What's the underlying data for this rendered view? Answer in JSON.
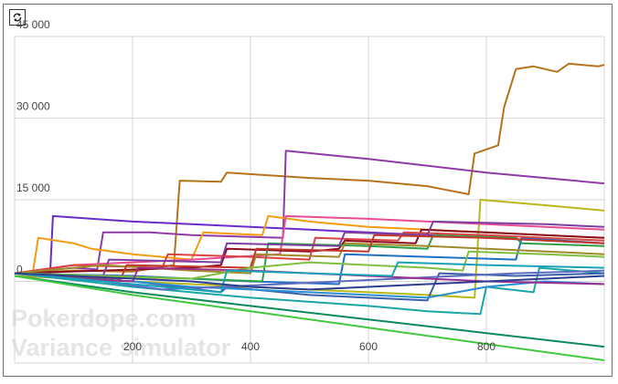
{
  "toolbar": {
    "refresh_icon": "refresh-icon"
  },
  "watermark": {
    "line1": "Pokerdope.com",
    "line2": "Variance simulator"
  },
  "chart_data": {
    "type": "line",
    "title": "",
    "xlabel": "",
    "ylabel": "",
    "xlim": [
      0,
      1000
    ],
    "ylim": [
      -15000,
      45000
    ],
    "grid": true,
    "x_ticks": [
      200,
      400,
      600,
      800
    ],
    "x_tick_labels": [
      "200",
      "400",
      "600",
      "800"
    ],
    "y_ticks": [
      0,
      15000,
      30000,
      45000
    ],
    "y_tick_labels": [
      "0",
      "15 000",
      "30 000",
      "45 000"
    ],
    "series": [
      {
        "color": "#b5741c",
        "x": [
          0,
          100,
          200,
          270,
          280,
          350,
          360,
          500,
          600,
          700,
          770,
          780,
          820,
          830,
          850,
          880,
          920,
          940,
          990,
          1000
        ],
        "y": [
          1500,
          2000,
          1800,
          3000,
          18500,
          18300,
          20000,
          19000,
          18500,
          17500,
          16000,
          23500,
          25000,
          32000,
          39000,
          39500,
          38500,
          40000,
          39500,
          39800
        ]
      },
      {
        "color": "#8e3ba6",
        "x": [
          0,
          100,
          140,
          150,
          230,
          300,
          455,
          460,
          600,
          800,
          1000
        ],
        "y": [
          1500,
          2500,
          2200,
          9000,
          9000,
          8500,
          8000,
          24000,
          22500,
          20000,
          18000
        ]
      },
      {
        "color": "#6a2cc9",
        "x": [
          0,
          60,
          65,
          200,
          300,
          400,
          500,
          600,
          700,
          800,
          900,
          1000
        ],
        "y": [
          1500,
          1000,
          12000,
          11000,
          10500,
          10000,
          9500,
          9000,
          8500,
          8000,
          7500,
          7000
        ]
      },
      {
        "color": "#f39c12",
        "x": [
          0,
          30,
          40,
          100,
          130,
          200,
          300,
          320,
          420,
          430,
          500,
          600,
          700,
          800,
          1000
        ],
        "y": [
          1500,
          1000,
          8000,
          7000,
          6000,
          5000,
          4000,
          9000,
          8500,
          12000,
          11000,
          10000,
          9500,
          9000,
          8000
        ]
      },
      {
        "color": "#b8b81a",
        "x": [
          0,
          200,
          400,
          600,
          700,
          780,
          790,
          900,
          1000
        ],
        "y": [
          1000,
          0,
          -1000,
          -2000,
          -2500,
          -3000,
          15000,
          14000,
          13000
        ]
      },
      {
        "color": "#e84c93",
        "x": [
          0,
          100,
          300,
          450,
          460,
          600,
          700,
          800,
          900,
          1000
        ],
        "y": [
          1500,
          3000,
          4000,
          5000,
          12000,
          11500,
          11000,
          10500,
          10000,
          9500
        ]
      },
      {
        "color": "#8b0a1e",
        "x": [
          0,
          150,
          300,
          350,
          360,
          500,
          550,
          560,
          680,
          690,
          800,
          1000
        ],
        "y": [
          1500,
          2000,
          2500,
          3000,
          6000,
          5500,
          6000,
          7500,
          7000,
          9500,
          9000,
          8000
        ]
      },
      {
        "color": "#1f6fc5",
        "x": [
          0,
          200,
          400,
          550,
          560,
          700,
          850,
          860,
          1000
        ],
        "y": [
          1500,
          1000,
          0,
          -500,
          5000,
          4500,
          4000,
          8000,
          7000
        ]
      },
      {
        "color": "#2e9e48",
        "x": [
          0,
          150,
          300,
          420,
          430,
          600,
          700,
          710,
          850,
          860,
          1000
        ],
        "y": [
          1500,
          1000,
          500,
          0,
          7000,
          6500,
          6000,
          8500,
          8000,
          7000,
          6500
        ]
      },
      {
        "color": "#1aa6a6",
        "x": [
          0,
          200,
          400,
          600,
          700,
          790,
          800,
          880,
          890,
          1000
        ],
        "y": [
          1500,
          -1000,
          -3000,
          -4500,
          -5500,
          -6000,
          -1000,
          -2000,
          2500,
          1500
        ]
      },
      {
        "color": "#d94343",
        "x": [
          0,
          100,
          250,
          260,
          400,
          500,
          510,
          650,
          660,
          800,
          1000
        ],
        "y": [
          1500,
          3000,
          2500,
          5000,
          4500,
          4000,
          8000,
          7500,
          9000,
          8500,
          7500
        ]
      },
      {
        "color": "#3d5ea8",
        "x": [
          0,
          200,
          350,
          360,
          500,
          700,
          720,
          850,
          1000
        ],
        "y": [
          1500,
          0,
          -2000,
          -1000,
          -2500,
          -3500,
          1500,
          1000,
          1500
        ]
      },
      {
        "color": "#0d8a5a",
        "x": [
          0,
          200,
          400,
          600,
          800,
          1000
        ],
        "y": [
          1000,
          -2000,
          -4500,
          -7000,
          -9500,
          -12000
        ]
      },
      {
        "color": "#40c840",
        "x": [
          0,
          200,
          400,
          600,
          800,
          1000
        ],
        "y": [
          1000,
          -2500,
          -5500,
          -8500,
          -11500,
          -14500
        ]
      },
      {
        "color": "#7b3fa0",
        "x": [
          0,
          150,
          160,
          350,
          360,
          550,
          560,
          700,
          710,
          900,
          1000
        ],
        "y": [
          1500,
          1000,
          4000,
          3500,
          7000,
          6500,
          9000,
          8500,
          11000,
          10500,
          10000
        ]
      },
      {
        "color": "#a08a2a",
        "x": [
          0,
          150,
          300,
          400,
          410,
          550,
          560,
          700,
          800,
          1000
        ],
        "y": [
          1500,
          3000,
          2000,
          1500,
          5000,
          4500,
          7000,
          6500,
          6000,
          5000
        ]
      },
      {
        "color": "#2a8fd4",
        "x": [
          0,
          100,
          200,
          300,
          400,
          500,
          600,
          700,
          800,
          900,
          1000
        ],
        "y": [
          1500,
          500,
          0,
          -1000,
          -1500,
          -2000,
          -2500,
          -3000,
          -1000,
          0,
          -500
        ]
      },
      {
        "color": "#c0392b",
        "x": [
          0,
          180,
          190,
          400,
          410,
          600,
          610,
          800,
          1000
        ],
        "y": [
          1500,
          500,
          3000,
          2500,
          6000,
          5500,
          8500,
          8000,
          7000
        ]
      },
      {
        "color": "#5c6bc0",
        "x": [
          0,
          150,
          250,
          350,
          450,
          550,
          650,
          750,
          850,
          950,
          1000
        ],
        "y": [
          1500,
          0,
          -1500,
          -1000,
          -500,
          0,
          500,
          1000,
          1500,
          1800,
          2000
        ]
      },
      {
        "color": "#7fbf3f",
        "x": [
          0,
          100,
          200,
          300,
          400,
          500,
          600,
          700,
          760,
          770,
          900,
          1000
        ],
        "y": [
          1500,
          1200,
          800,
          500,
          2500,
          3500,
          3000,
          2500,
          2000,
          5500,
          5000,
          4500
        ]
      },
      {
        "color": "#9b2d8f",
        "x": [
          0,
          100,
          200,
          210,
          400,
          500,
          600,
          700,
          800,
          1000
        ],
        "y": [
          1500,
          500,
          0,
          2500,
          2000,
          1500,
          1000,
          500,
          0,
          -500
        ]
      },
      {
        "color": "#17a2b8",
        "x": [
          0,
          200,
          350,
          360,
          500,
          640,
          650,
          800,
          1000
        ],
        "y": [
          1500,
          -500,
          -2000,
          2000,
          1500,
          1000,
          3500,
          3000,
          2500
        ]
      },
      {
        "color": "#2c3e90",
        "x": [
          0,
          100,
          300,
          400,
          500,
          600,
          700,
          800,
          900,
          1000
        ],
        "y": [
          1500,
          1000,
          0,
          -1000,
          -1500,
          -1000,
          -500,
          0,
          500,
          1000
        ]
      }
    ]
  }
}
